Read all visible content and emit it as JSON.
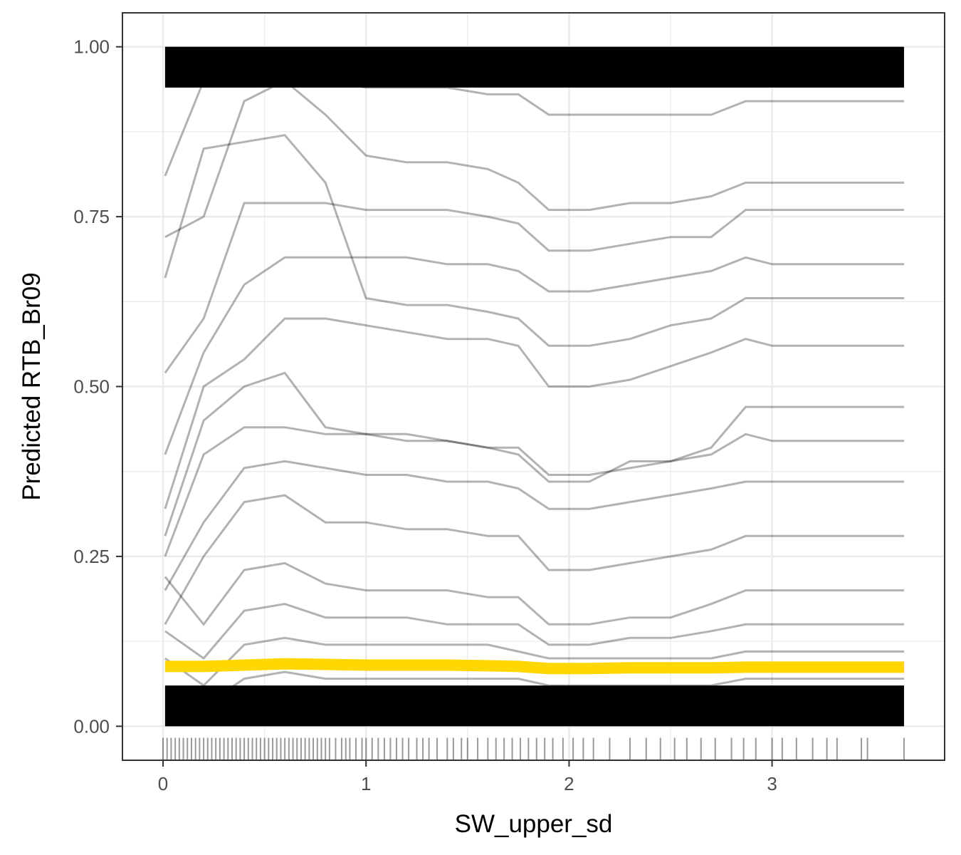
{
  "chart_data": {
    "type": "line",
    "title": "",
    "xlabel": "SW_upper_sd",
    "ylabel": "Predicted RTB_Br09",
    "xlim": [
      -0.2,
      3.85
    ],
    "ylim": [
      -0.05,
      1.05
    ],
    "x_ticks": [
      0,
      1,
      2,
      3
    ],
    "x_tick_labels": [
      "0",
      "1",
      "2",
      "3"
    ],
    "y_ticks": [
      0,
      0.25,
      0.5,
      0.75,
      1.0
    ],
    "y_tick_labels": [
      "0.00",
      "0.25",
      "0.50",
      "0.75",
      "1.00"
    ],
    "grid": true,
    "legend": "none",
    "x": [
      0.01,
      0.2,
      0.4,
      0.6,
      0.8,
      1.0,
      1.2,
      1.4,
      1.6,
      1.75,
      1.9,
      2.1,
      2.3,
      2.5,
      2.7,
      2.87,
      3.0,
      3.2,
      3.4,
      3.65
    ],
    "series": [
      {
        "name": "",
        "values": [
          0.81,
          0.95,
          0.96,
          0.96,
          0.95,
          0.94,
          0.94,
          0.94,
          0.93,
          0.93,
          0.9,
          0.9,
          0.9,
          0.9,
          0.9,
          0.92,
          0.92,
          0.92,
          0.92,
          0.92
        ]
      },
      {
        "name": "",
        "values": [
          0.72,
          0.75,
          0.92,
          0.95,
          0.9,
          0.84,
          0.83,
          0.83,
          0.82,
          0.8,
          0.76,
          0.76,
          0.77,
          0.77,
          0.78,
          0.8,
          0.8,
          0.8,
          0.8,
          0.8
        ]
      },
      {
        "name": "",
        "values": [
          0.52,
          0.6,
          0.77,
          0.77,
          0.77,
          0.76,
          0.76,
          0.76,
          0.75,
          0.74,
          0.7,
          0.7,
          0.71,
          0.72,
          0.72,
          0.76,
          0.76,
          0.76,
          0.76,
          0.76
        ]
      },
      {
        "name": "",
        "values": [
          0.4,
          0.55,
          0.65,
          0.69,
          0.69,
          0.69,
          0.69,
          0.68,
          0.68,
          0.67,
          0.64,
          0.64,
          0.65,
          0.66,
          0.67,
          0.69,
          0.68,
          0.68,
          0.68,
          0.68
        ]
      },
      {
        "name": "",
        "values": [
          0.66,
          0.85,
          0.86,
          0.87,
          0.8,
          0.63,
          0.62,
          0.62,
          0.61,
          0.6,
          0.56,
          0.56,
          0.57,
          0.59,
          0.6,
          0.63,
          0.63,
          0.63,
          0.63,
          0.63
        ]
      },
      {
        "name": "",
        "values": [
          0.32,
          0.5,
          0.54,
          0.6,
          0.6,
          0.59,
          0.58,
          0.57,
          0.57,
          0.56,
          0.5,
          0.5,
          0.51,
          0.53,
          0.55,
          0.57,
          0.56,
          0.56,
          0.56,
          0.56
        ]
      },
      {
        "name": "",
        "values": [
          0.28,
          0.45,
          0.5,
          0.52,
          0.44,
          0.43,
          0.43,
          0.42,
          0.41,
          0.4,
          0.36,
          0.36,
          0.39,
          0.39,
          0.4,
          0.43,
          0.42,
          0.42,
          0.42,
          0.42
        ]
      },
      {
        "name": "",
        "values": [
          0.25,
          0.4,
          0.44,
          0.44,
          0.43,
          0.43,
          0.42,
          0.42,
          0.41,
          0.41,
          0.37,
          0.37,
          0.38,
          0.39,
          0.41,
          0.47,
          0.47,
          0.47,
          0.47,
          0.47
        ]
      },
      {
        "name": "",
        "values": [
          0.2,
          0.3,
          0.38,
          0.39,
          0.38,
          0.37,
          0.37,
          0.36,
          0.36,
          0.35,
          0.32,
          0.32,
          0.33,
          0.34,
          0.35,
          0.36,
          0.36,
          0.36,
          0.36,
          0.36
        ]
      },
      {
        "name": "",
        "values": [
          0.15,
          0.25,
          0.33,
          0.34,
          0.3,
          0.3,
          0.29,
          0.29,
          0.28,
          0.28,
          0.23,
          0.23,
          0.24,
          0.25,
          0.26,
          0.28,
          0.28,
          0.28,
          0.28,
          0.28
        ]
      },
      {
        "name": "",
        "values": [
          0.22,
          0.15,
          0.23,
          0.24,
          0.21,
          0.2,
          0.2,
          0.2,
          0.19,
          0.19,
          0.15,
          0.15,
          0.16,
          0.16,
          0.18,
          0.2,
          0.2,
          0.2,
          0.2,
          0.2
        ]
      },
      {
        "name": "",
        "values": [
          0.14,
          0.1,
          0.17,
          0.18,
          0.16,
          0.16,
          0.16,
          0.15,
          0.15,
          0.15,
          0.12,
          0.12,
          0.13,
          0.13,
          0.14,
          0.15,
          0.15,
          0.15,
          0.15,
          0.15
        ]
      },
      {
        "name": "",
        "values": [
          0.1,
          0.06,
          0.12,
          0.13,
          0.12,
          0.12,
          0.12,
          0.12,
          0.12,
          0.11,
          0.1,
          0.1,
          0.1,
          0.1,
          0.1,
          0.11,
          0.11,
          0.11,
          0.11,
          0.11
        ]
      },
      {
        "name": "",
        "values": [
          0.05,
          0.03,
          0.07,
          0.08,
          0.07,
          0.07,
          0.07,
          0.07,
          0.07,
          0.07,
          0.06,
          0.06,
          0.06,
          0.06,
          0.06,
          0.07,
          0.07,
          0.07,
          0.07,
          0.07
        ]
      }
    ],
    "average_series": {
      "name": "",
      "color": "#FFD700",
      "values": [
        0.088,
        0.088,
        0.09,
        0.092,
        0.091,
        0.09,
        0.09,
        0.09,
        0.089,
        0.088,
        0.085,
        0.085,
        0.086,
        0.086,
        0.086,
        0.087,
        0.087,
        0.087,
        0.087,
        0.087
      ]
    },
    "dense_bands": [
      [
        0.0,
        0.06
      ],
      [
        0.94,
        1.0
      ]
    ],
    "rug": [
      0.0,
      0.02,
      0.04,
      0.06,
      0.08,
      0.1,
      0.12,
      0.14,
      0.16,
      0.18,
      0.2,
      0.22,
      0.24,
      0.26,
      0.28,
      0.3,
      0.32,
      0.34,
      0.36,
      0.38,
      0.4,
      0.42,
      0.44,
      0.46,
      0.48,
      0.5,
      0.52,
      0.54,
      0.56,
      0.58,
      0.6,
      0.62,
      0.64,
      0.66,
      0.68,
      0.7,
      0.72,
      0.74,
      0.76,
      0.78,
      0.8,
      0.82,
      0.85,
      0.88,
      0.9,
      0.92,
      0.95,
      0.98,
      1.0,
      1.03,
      1.06,
      1.09,
      1.12,
      1.15,
      1.18,
      1.21,
      1.25,
      1.28,
      1.31,
      1.35,
      1.4,
      1.43,
      1.47,
      1.5,
      1.55,
      1.6,
      1.64,
      1.68,
      1.72,
      1.76,
      1.8,
      1.84,
      1.88,
      1.92,
      1.97,
      2.02,
      2.07,
      2.12,
      2.2,
      2.3,
      2.38,
      2.45,
      2.52,
      2.58,
      2.65,
      2.72,
      2.8,
      2.86,
      2.92,
      3.0,
      3.05,
      3.12,
      3.2,
      3.27,
      3.32,
      3.44,
      3.47,
      3.65
    ],
    "colors": {
      "lines": "#000000",
      "average": "#FFD700",
      "grid": "#ebebeb",
      "panel_border": "#333333"
    }
  }
}
